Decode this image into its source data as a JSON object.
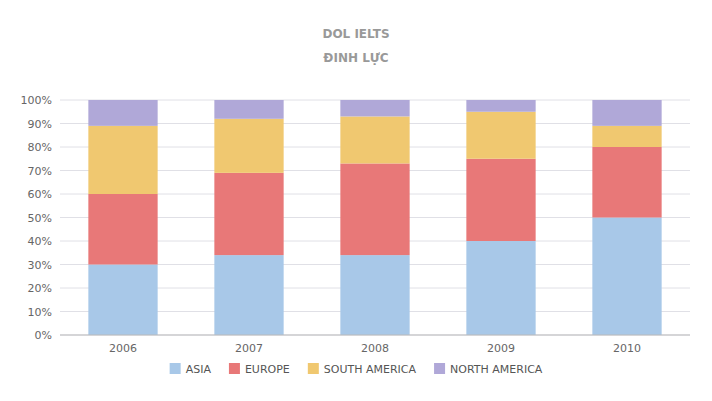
{
  "chart_data": {
    "type": "bar",
    "stacked": true,
    "categories": [
      "2006",
      "2007",
      "2008",
      "2009",
      "2010"
    ],
    "series": [
      {
        "name": "ASIA",
        "color": "#a8c8e8",
        "values": [
          30,
          34,
          34,
          40,
          50
        ]
      },
      {
        "name": "EUROPE",
        "color": "#e87878",
        "values": [
          30,
          35,
          39,
          35,
          30
        ]
      },
      {
        "name": "SOUTH AMERICA",
        "color": "#f0c870",
        "values": [
          29,
          23,
          20,
          20,
          9
        ]
      },
      {
        "name": "NORTH AMERICA",
        "color": "#b0a8d8",
        "values": [
          11,
          8,
          7,
          5,
          11
        ]
      }
    ],
    "ylim": [
      0,
      100
    ],
    "yticks": [
      {
        "value": 0,
        "label": "0%"
      },
      {
        "value": 10,
        "label": "10%"
      },
      {
        "value": 20,
        "label": "20%"
      },
      {
        "value": 30,
        "label": "30%"
      },
      {
        "value": 40,
        "label": "40%"
      },
      {
        "value": 50,
        "label": "50%"
      },
      {
        "value": 60,
        "label": "60%"
      },
      {
        "value": 70,
        "label": "70%"
      },
      {
        "value": 80,
        "label": "80%"
      },
      {
        "value": 90,
        "label": "90%"
      },
      {
        "value": 100,
        "label": "100%"
      }
    ],
    "grid": true,
    "legend": "bottom",
    "annotations": [
      "DOL IELTS",
      "ĐINH LỰC"
    ]
  }
}
